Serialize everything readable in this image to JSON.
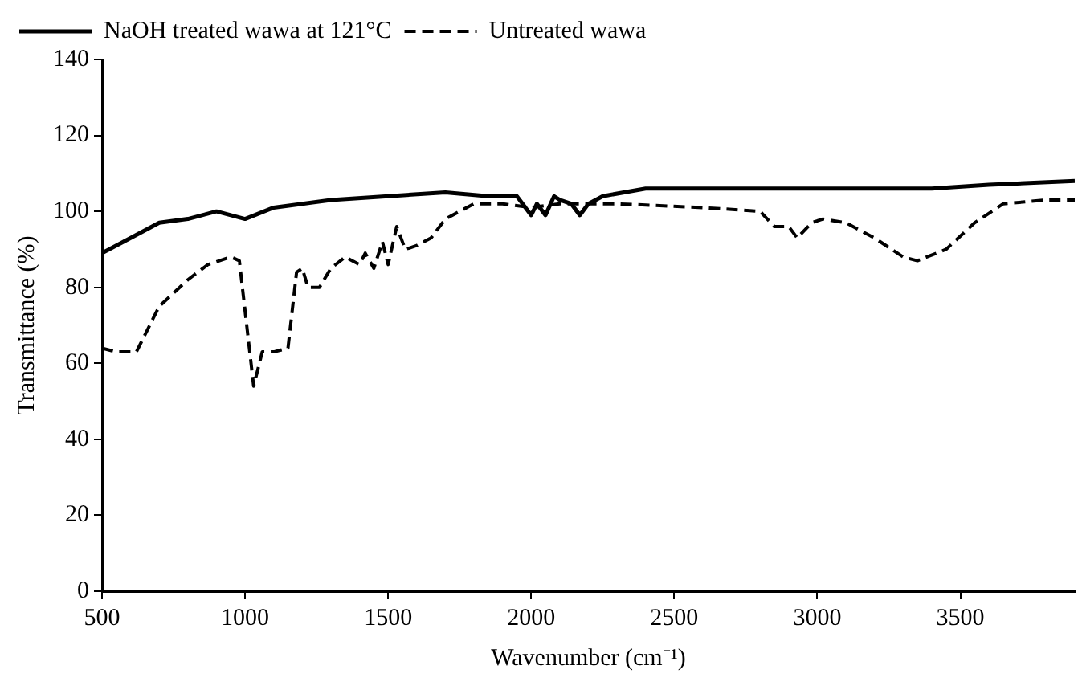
{
  "chart_data": {
    "type": "line",
    "xlabel": "Wavenumber (cm⁻¹)",
    "ylabel": "Transmittance (%)",
    "xlim": [
      500,
      3900
    ],
    "xticks": [
      500,
      1000,
      1500,
      2000,
      2500,
      3000,
      3500
    ],
    "ylim": [
      0,
      140
    ],
    "yticks": [
      0,
      20,
      40,
      60,
      80,
      100,
      120,
      140
    ],
    "grid": false,
    "legend": "top left",
    "marker": "none",
    "series": [
      {
        "name": "NaOH treated wawa at 121°C",
        "color": "#000000",
        "line_style": "solid",
        "x": [
          500,
          600,
          700,
          800,
          900,
          1000,
          1100,
          1200,
          1300,
          1500,
          1700,
          1850,
          1950,
          1980,
          2000,
          2020,
          2050,
          2080,
          2100,
          2140,
          2170,
          2200,
          2250,
          2400,
          2700,
          3000,
          3400,
          3600,
          3900
        ],
        "values": [
          89,
          93,
          97,
          98,
          100,
          98,
          101,
          102,
          103,
          104,
          105,
          104,
          104,
          101,
          99,
          102,
          99,
          104,
          103,
          102,
          99,
          102,
          104,
          106,
          106,
          106,
          106,
          107,
          108
        ]
      },
      {
        "name": "Untreated wawa",
        "color": "#000000",
        "line_style": "dashed",
        "x": [
          500,
          550,
          620,
          700,
          800,
          870,
          950,
          980,
          1030,
          1060,
          1100,
          1150,
          1180,
          1200,
          1220,
          1260,
          1300,
          1350,
          1400,
          1420,
          1450,
          1480,
          1500,
          1530,
          1560,
          1600,
          1650,
          1700,
          1800,
          1900,
          2000,
          2100,
          2300,
          2600,
          2800,
          2850,
          2900,
          2930,
          2980,
          3020,
          3100,
          3200,
          3300,
          3350,
          3450,
          3550,
          3650,
          3800,
          3900
        ],
        "values": [
          64,
          63,
          63,
          75,
          82,
          86,
          88,
          87,
          54,
          63,
          63,
          64,
          84,
          85,
          80,
          80,
          85,
          88,
          86,
          89,
          85,
          92,
          86,
          96,
          90,
          91,
          93,
          98,
          102,
          102,
          101,
          102,
          102,
          101,
          100,
          96,
          96,
          93,
          97,
          98,
          97,
          93,
          88,
          87,
          90,
          97,
          102,
          103,
          103
        ]
      }
    ]
  }
}
